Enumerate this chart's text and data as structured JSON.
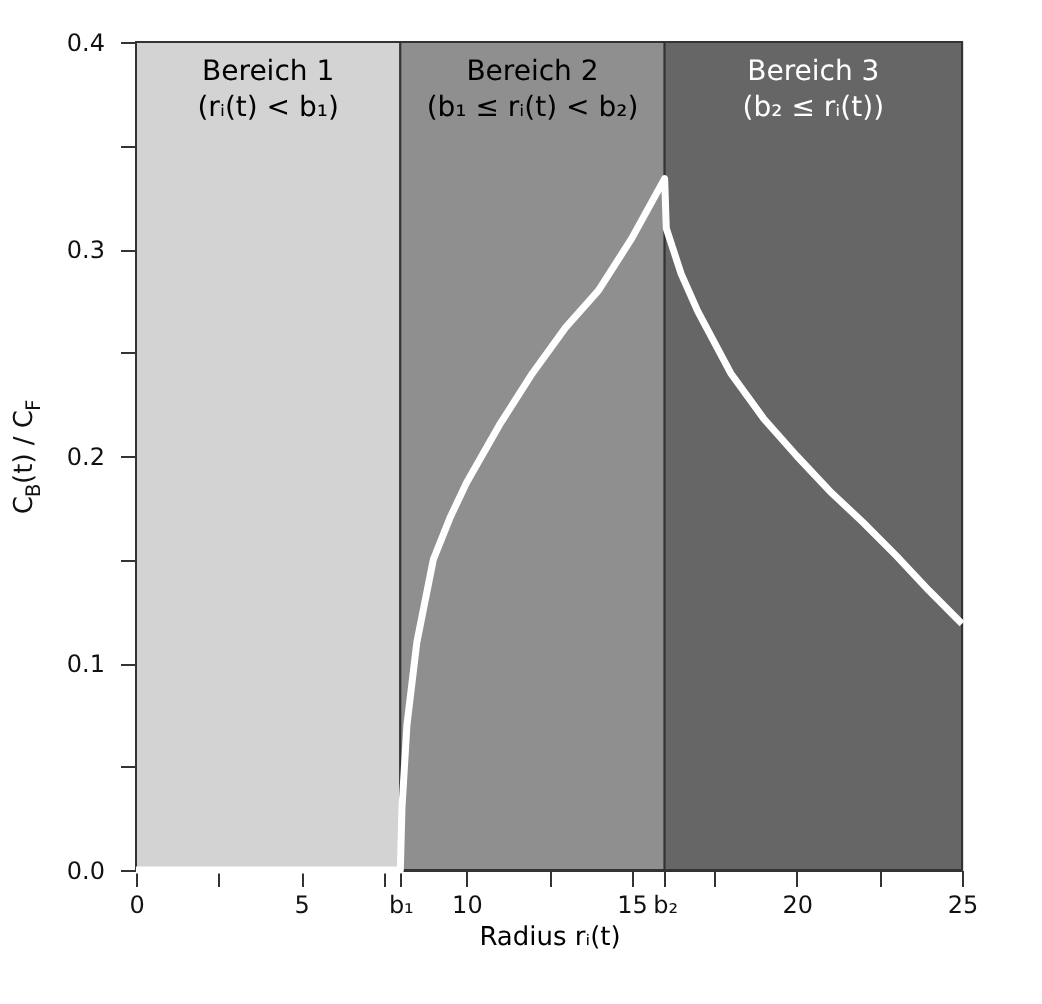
{
  "chart_data": {
    "type": "line",
    "xlabel": "Radius rᵢ(t)",
    "ylabel": "C$_{B}$(t) / C$_{F}$",
    "x": [
      0,
      4,
      8,
      8.05,
      8.2,
      8.5,
      9,
      9.5,
      10,
      11,
      12,
      13,
      14,
      15,
      16,
      16.05,
      16.5,
      17,
      18,
      19,
      20,
      21,
      22,
      23,
      24,
      25
    ],
    "series": [
      {
        "color": "#ffffff",
        "values": [
          0,
          0,
          0,
          0.03,
          0.07,
          0.11,
          0.15,
          0.17,
          0.187,
          0.215,
          0.24,
          0.262,
          0.28,
          0.305,
          0.334,
          0.31,
          0.288,
          0.27,
          0.24,
          0.218,
          0.2,
          0.183,
          0.168,
          0.152,
          0.135,
          0.119
        ]
      }
    ],
    "xlim": [
      0,
      25
    ],
    "ylim": [
      0,
      0.4
    ],
    "xticks": [
      0,
      {
        "value": 2.5,
        "label": null
      },
      5,
      {
        "value": 7.5,
        "label": null
      },
      {
        "value": 8,
        "label": "b₁"
      },
      10,
      {
        "value": 12.5,
        "label": null
      },
      15,
      {
        "value": 16,
        "label": "b₂"
      },
      {
        "value": 17.5,
        "label": null
      },
      20,
      {
        "value": 22.5,
        "label": null
      },
      25
    ],
    "yticks": [
      {
        "value": 0,
        "label": "0.0"
      },
      {
        "value": 0.05,
        "label": null
      },
      0.1,
      {
        "value": 0.15,
        "label": null
      },
      0.2,
      {
        "value": 0.25,
        "label": null
      },
      0.3,
      {
        "value": 0.35,
        "label": null
      },
      0.4
    ],
    "bands": [
      {
        "axis": "x",
        "from": 0,
        "to": 8,
        "label": "Bereich 1\n(rᵢ(t) < b₁)",
        "color": "#d3d3d3"
      },
      {
        "axis": "x",
        "from": 8,
        "to": 16,
        "label": "Bereich 2\n(b₁ ≤ rᵢ(t) < b₂)",
        "color": "#8f8f8f"
      },
      {
        "axis": "x",
        "from": 16,
        "to": 25,
        "label": "Bereich 3\n(b₂ ≤ rᵢ(t))",
        "color": "#666666"
      }
    ],
    "grid": false,
    "marker": "none",
    "line_style": "solid"
  }
}
